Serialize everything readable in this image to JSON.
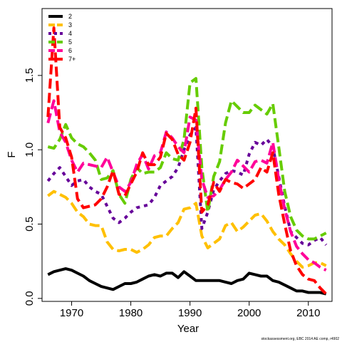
{
  "chart_data": {
    "type": "line",
    "xlabel": "Year",
    "ylabel": "F",
    "xlim": [
      1965,
      2014
    ],
    "ylim": [
      -0.02,
      1.95
    ],
    "xticks": [
      1970,
      1980,
      1990,
      2000,
      2010
    ],
    "yticks": [
      0.0,
      0.5,
      1.0,
      1.5
    ],
    "ytick_labels": [
      "0.0",
      "0.5",
      "1.0",
      "1.5"
    ],
    "grid": false,
    "legend_position": "top-left",
    "footnote": "stockassessment.org, EBC 2014 AE comp, r4902",
    "x": [
      1966,
      1967,
      1968,
      1969,
      1970,
      1971,
      1972,
      1973,
      1974,
      1975,
      1976,
      1977,
      1978,
      1979,
      1980,
      1981,
      1982,
      1983,
      1984,
      1985,
      1986,
      1987,
      1988,
      1989,
      1990,
      1991,
      1992,
      1993,
      1994,
      1995,
      1996,
      1997,
      1998,
      1999,
      2000,
      2001,
      2002,
      2003,
      2004,
      2005,
      2006,
      2007,
      2008,
      2009,
      2010,
      2011,
      2012,
      2013
    ],
    "series": [
      {
        "name": "2",
        "color": "#000000",
        "dash": "solid",
        "values": [
          0.16,
          0.18,
          0.19,
          0.2,
          0.19,
          0.17,
          0.15,
          0.12,
          0.1,
          0.08,
          0.07,
          0.06,
          0.08,
          0.1,
          0.1,
          0.11,
          0.13,
          0.15,
          0.16,
          0.15,
          0.17,
          0.17,
          0.14,
          0.18,
          0.15,
          0.12,
          0.12,
          0.12,
          0.12,
          0.12,
          0.11,
          0.1,
          0.12,
          0.13,
          0.17,
          0.16,
          0.15,
          0.15,
          0.12,
          0.11,
          0.09,
          0.07,
          0.05,
          0.05,
          0.04,
          0.04,
          0.04,
          0.03
        ]
      },
      {
        "name": "3",
        "color": "#ffc000",
        "dash": "long",
        "values": [
          0.69,
          0.72,
          0.7,
          0.68,
          0.64,
          0.58,
          0.55,
          0.5,
          0.49,
          0.49,
          0.38,
          0.33,
          0.32,
          0.33,
          0.33,
          0.31,
          0.33,
          0.36,
          0.41,
          0.42,
          0.42,
          0.47,
          0.51,
          0.6,
          0.61,
          0.64,
          0.42,
          0.34,
          0.37,
          0.4,
          0.49,
          0.51,
          0.45,
          0.48,
          0.52,
          0.56,
          0.57,
          0.52,
          0.45,
          0.4,
          0.36,
          0.3,
          0.25,
          0.21,
          0.22,
          0.24,
          0.24,
          0.22
        ]
      },
      {
        "name": "4",
        "color": "#660099",
        "dash": "dotted",
        "values": [
          0.79,
          0.84,
          0.88,
          0.82,
          0.76,
          0.79,
          0.8,
          0.75,
          0.72,
          0.7,
          0.62,
          0.54,
          0.51,
          0.54,
          0.58,
          0.61,
          0.62,
          0.63,
          0.68,
          0.76,
          0.79,
          0.82,
          0.88,
          1.0,
          1.1,
          1.15,
          0.47,
          0.58,
          0.73,
          0.79,
          0.84,
          0.86,
          0.85,
          0.83,
          0.97,
          1.05,
          1.03,
          1.07,
          1.02,
          0.82,
          0.62,
          0.45,
          0.41,
          0.37,
          0.36,
          0.39,
          0.41,
          0.36
        ]
      },
      {
        "name": "5",
        "color": "#66cc00",
        "dash": "long",
        "values": [
          1.02,
          1.01,
          1.07,
          1.17,
          1.08,
          1.04,
          1.02,
          0.98,
          0.93,
          0.8,
          0.81,
          0.86,
          0.7,
          0.64,
          0.8,
          0.88,
          0.84,
          0.85,
          0.85,
          0.88,
          0.98,
          0.94,
          0.93,
          1.07,
          1.45,
          1.48,
          0.88,
          0.58,
          0.82,
          0.92,
          1.18,
          1.33,
          1.29,
          1.25,
          1.25,
          1.3,
          1.27,
          1.24,
          1.31,
          1.02,
          0.72,
          0.55,
          0.46,
          0.42,
          0.4,
          0.4,
          0.42,
          0.44
        ]
      },
      {
        "name": "6",
        "color": "#ff0099",
        "dash": "long",
        "values": [
          1.18,
          1.33,
          1.12,
          1.05,
          0.93,
          0.85,
          0.91,
          0.9,
          0.89,
          0.88,
          0.95,
          0.85,
          0.75,
          0.72,
          0.78,
          0.9,
          0.97,
          0.87,
          0.96,
          0.98,
          1.12,
          1.08,
          1.02,
          0.98,
          1.22,
          1.2,
          0.8,
          0.68,
          0.69,
          0.73,
          0.8,
          0.85,
          0.93,
          0.89,
          0.85,
          0.92,
          0.93,
          0.91,
          1.05,
          0.8,
          0.6,
          0.45,
          0.35,
          0.3,
          0.26,
          0.24,
          0.21,
          0.19
        ]
      },
      {
        "name": "7+",
        "color": "#ff0000",
        "dash": "long",
        "values": [
          1.22,
          1.82,
          1.15,
          1.08,
          0.95,
          0.67,
          0.61,
          0.62,
          0.63,
          0.67,
          0.75,
          0.86,
          0.7,
          0.69,
          0.77,
          0.85,
          0.98,
          0.9,
          0.9,
          0.95,
          1.11,
          1.07,
          0.97,
          0.93,
          1.05,
          1.28,
          0.58,
          0.63,
          0.78,
          0.72,
          0.8,
          0.78,
          0.77,
          0.74,
          0.77,
          0.8,
          0.88,
          0.85,
          0.98,
          0.7,
          0.5,
          0.32,
          0.22,
          0.16,
          0.13,
          0.12,
          0.07,
          0.03
        ]
      }
    ]
  }
}
